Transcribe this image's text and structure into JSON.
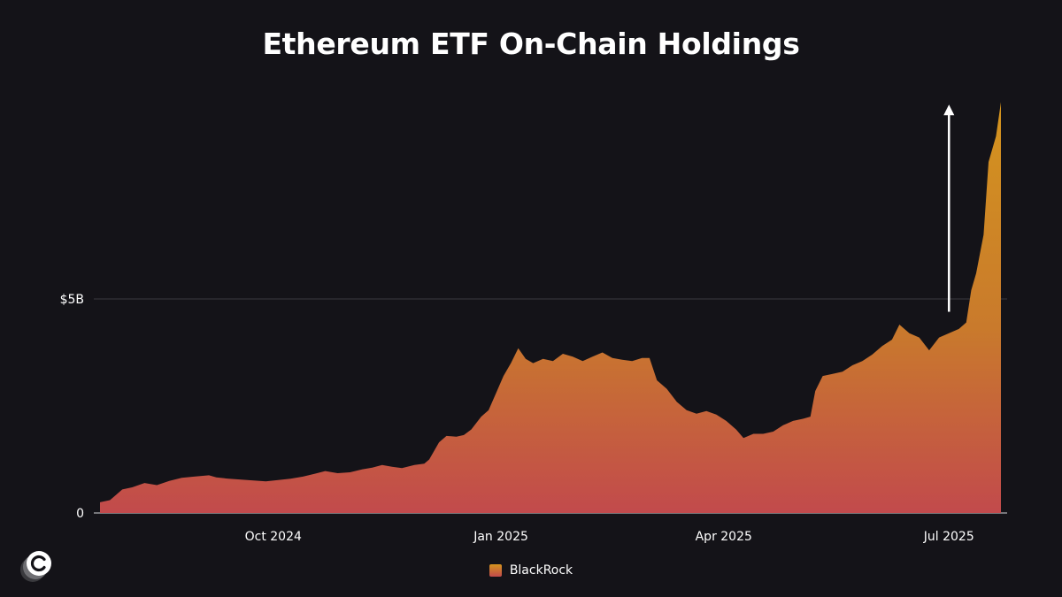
{
  "chart_data": {
    "type": "area",
    "title": "Ethereum ETF On-Chain Holdings",
    "xlabel": "",
    "ylabel": "",
    "x_tick_labels": [
      "Oct 2024",
      "Jan 2025",
      "Apr 2025",
      "Jul 2025"
    ],
    "x_tick_dates": [
      "2024-10-01",
      "2025-01-01",
      "2025-04-01",
      "2025-07-01"
    ],
    "y_tick_labels": [
      "0",
      "$5B"
    ],
    "y_tick_values": [
      0,
      5
    ],
    "y_unit": "USD billions",
    "xlim": [
      "2024-07-23",
      "2025-07-22"
    ],
    "ylim": [
      0,
      9.6
    ],
    "grid": "horizontal",
    "legend_position": "bottom-center",
    "series": [
      {
        "name": "BlackRock",
        "color_top": "#d4941e",
        "color_bottom": "#c24a4c",
        "points": [
          [
            "2024-07-23",
            0.25
          ],
          [
            "2024-07-27",
            0.3
          ],
          [
            "2024-08-01",
            0.55
          ],
          [
            "2024-08-05",
            0.6
          ],
          [
            "2024-08-10",
            0.7
          ],
          [
            "2024-08-15",
            0.65
          ],
          [
            "2024-08-20",
            0.75
          ],
          [
            "2024-08-25",
            0.82
          ],
          [
            "2024-08-30",
            0.85
          ],
          [
            "2024-09-05",
            0.88
          ],
          [
            "2024-09-08",
            0.83
          ],
          [
            "2024-09-13",
            0.8
          ],
          [
            "2024-09-18",
            0.78
          ],
          [
            "2024-09-23",
            0.76
          ],
          [
            "2024-09-28",
            0.74
          ],
          [
            "2024-10-03",
            0.77
          ],
          [
            "2024-10-08",
            0.8
          ],
          [
            "2024-10-13",
            0.85
          ],
          [
            "2024-10-18",
            0.92
          ],
          [
            "2024-10-22",
            0.98
          ],
          [
            "2024-10-27",
            0.93
          ],
          [
            "2024-11-01",
            0.95
          ],
          [
            "2024-11-06",
            1.02
          ],
          [
            "2024-11-10",
            1.06
          ],
          [
            "2024-11-14",
            1.12
          ],
          [
            "2024-11-18",
            1.08
          ],
          [
            "2024-11-22",
            1.05
          ],
          [
            "2024-11-27",
            1.12
          ],
          [
            "2024-12-01",
            1.15
          ],
          [
            "2024-12-03",
            1.25
          ],
          [
            "2024-12-07",
            1.65
          ],
          [
            "2024-12-10",
            1.8
          ],
          [
            "2024-12-14",
            1.78
          ],
          [
            "2024-12-17",
            1.82
          ],
          [
            "2024-12-20",
            1.95
          ],
          [
            "2024-12-24",
            2.25
          ],
          [
            "2024-12-27",
            2.4
          ],
          [
            "2024-12-30",
            2.8
          ],
          [
            "2025-01-02",
            3.2
          ],
          [
            "2025-01-05",
            3.5
          ],
          [
            "2025-01-08",
            3.85
          ],
          [
            "2025-01-11",
            3.6
          ],
          [
            "2025-01-14",
            3.5
          ],
          [
            "2025-01-18",
            3.6
          ],
          [
            "2025-01-22",
            3.55
          ],
          [
            "2025-01-26",
            3.72
          ],
          [
            "2025-01-30",
            3.65
          ],
          [
            "2025-02-03",
            3.55
          ],
          [
            "2025-02-07",
            3.65
          ],
          [
            "2025-02-11",
            3.75
          ],
          [
            "2025-02-15",
            3.62
          ],
          [
            "2025-02-19",
            3.58
          ],
          [
            "2025-02-23",
            3.55
          ],
          [
            "2025-02-27",
            3.62
          ],
          [
            "2025-03-02",
            3.62
          ],
          [
            "2025-03-05",
            3.1
          ],
          [
            "2025-03-09",
            2.9
          ],
          [
            "2025-03-13",
            2.6
          ],
          [
            "2025-03-17",
            2.4
          ],
          [
            "2025-03-21",
            2.32
          ],
          [
            "2025-03-25",
            2.38
          ],
          [
            "2025-03-29",
            2.3
          ],
          [
            "2025-04-02",
            2.15
          ],
          [
            "2025-04-06",
            1.95
          ],
          [
            "2025-04-09",
            1.75
          ],
          [
            "2025-04-13",
            1.85
          ],
          [
            "2025-04-17",
            1.85
          ],
          [
            "2025-04-21",
            1.9
          ],
          [
            "2025-04-25",
            2.05
          ],
          [
            "2025-04-29",
            2.15
          ],
          [
            "2025-05-03",
            2.2
          ],
          [
            "2025-05-06",
            2.25
          ],
          [
            "2025-05-08",
            2.85
          ],
          [
            "2025-05-11",
            3.2
          ],
          [
            "2025-05-15",
            3.25
          ],
          [
            "2025-05-19",
            3.3
          ],
          [
            "2025-05-23",
            3.45
          ],
          [
            "2025-05-27",
            3.55
          ],
          [
            "2025-05-31",
            3.7
          ],
          [
            "2025-06-04",
            3.9
          ],
          [
            "2025-06-08",
            4.05
          ],
          [
            "2025-06-11",
            4.4
          ],
          [
            "2025-06-15",
            4.2
          ],
          [
            "2025-06-19",
            4.1
          ],
          [
            "2025-06-23",
            3.8
          ],
          [
            "2025-06-27",
            4.1
          ],
          [
            "2025-07-01",
            4.2
          ],
          [
            "2025-07-05",
            4.3
          ],
          [
            "2025-07-08",
            4.45
          ],
          [
            "2025-07-10",
            5.2
          ],
          [
            "2025-07-12",
            5.6
          ],
          [
            "2025-07-15",
            6.5
          ],
          [
            "2025-07-17",
            8.2
          ],
          [
            "2025-07-20",
            8.8
          ],
          [
            "2025-07-22",
            9.6
          ]
        ]
      }
    ],
    "annotations": [
      {
        "type": "arrow-up",
        "date": "2025-07-01",
        "from": 4.7,
        "to": 9.5,
        "color": "#ffffff"
      }
    ]
  },
  "legend": {
    "items": [
      {
        "label": "BlackRock"
      }
    ]
  },
  "brand": {
    "logo_icon": "c-logo-icon"
  }
}
